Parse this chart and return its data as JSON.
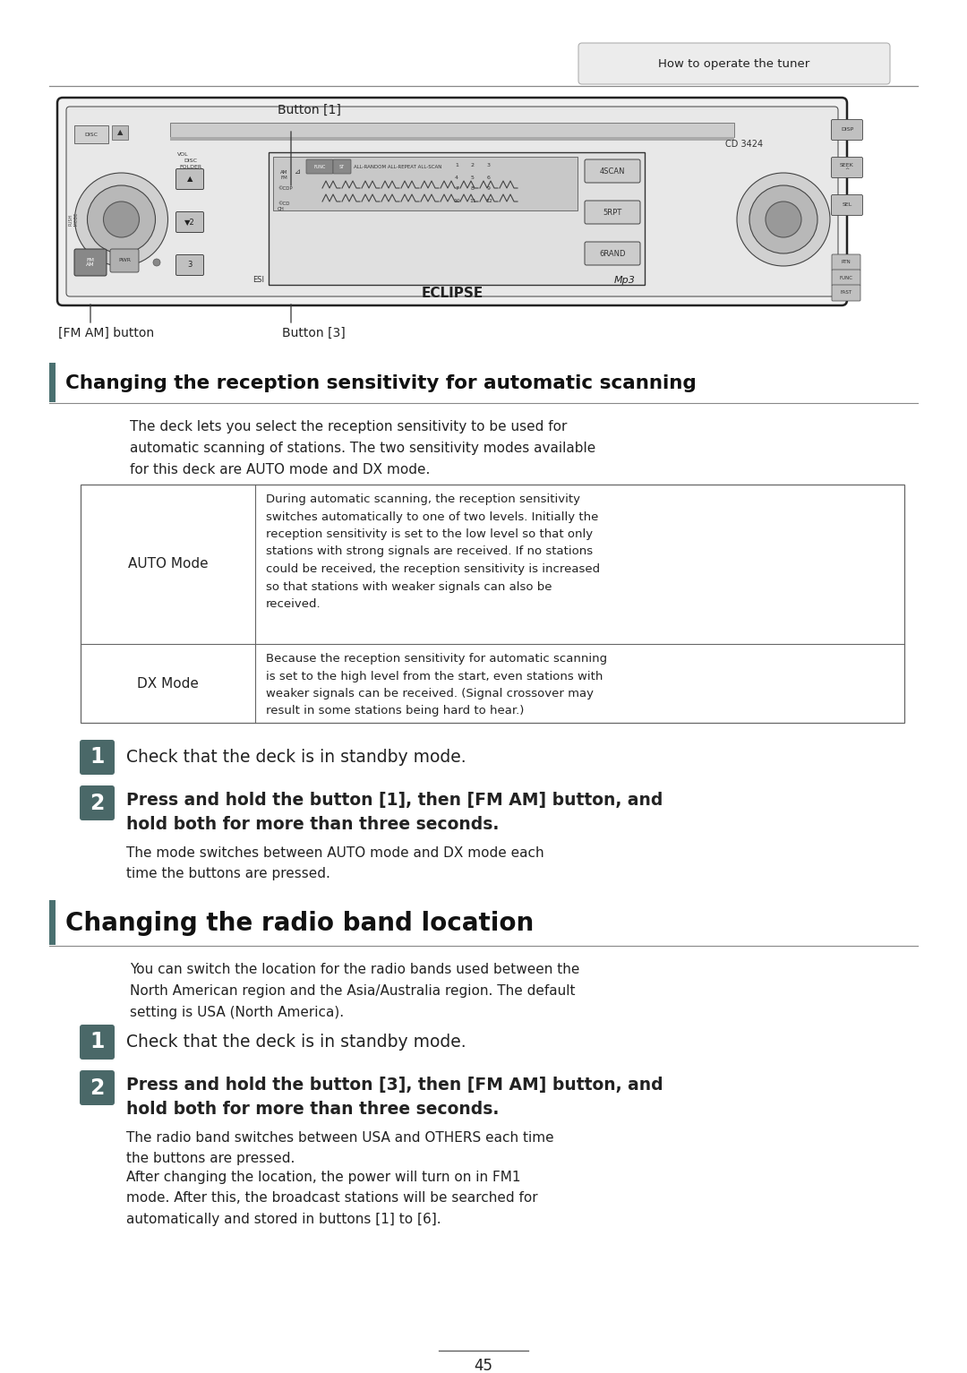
{
  "page_bg": "#ffffff",
  "header_tab_text": "How to operate the tuner",
  "header_tab_bg": "#ececec",
  "header_tab_border": "#aaaaaa",
  "header_line_color": "#888888",
  "button1_label": "Button [1]",
  "fmam_label": "[FM AM] button",
  "button3_label": "Button [3]",
  "section1_title": "Changing the reception sensitivity for automatic scanning",
  "section1_bar_color": "#4a7070",
  "section1_intro": "The deck lets you select the reception sensitivity to be used for\nautomatic scanning of stations. The two sensitivity modes available\nfor this deck are AUTO mode and DX mode.",
  "table_row1_label": "AUTO Mode",
  "table_row1_text": "During automatic scanning, the reception sensitivity\nswitches automatically to one of two levels. Initially the\nreception sensitivity is set to the low level so that only\nstations with strong signals are received. If no stations\ncould be received, the reception sensitivity is increased\nso that stations with weaker signals can also be\nreceived.",
  "table_row2_label": "DX Mode",
  "table_row2_text": "Because the reception sensitivity for automatic scanning\nis set to the high level from the start, even stations with\nweaker signals can be received. (Signal crossover may\nresult in some stations being hard to hear.)",
  "step_bg": "#4a6868",
  "step_text_color": "#ffffff",
  "sec1_step1_text": "Check that the deck is in standby mode.",
  "sec1_step2_bold": "Press and hold the button [1], then [FM AM] button, and\nhold both for more than three seconds.",
  "sec1_step2_note": "The mode switches between AUTO mode and DX mode each\ntime the buttons are pressed.",
  "section2_title": "Changing the radio band location",
  "section2_bar_color": "#4a7070",
  "section2_intro": "You can switch the location for the radio bands used between the\nNorth American region and the Asia/Australia region. The default\nsetting is USA (North America).",
  "sec2_step1_text": "Check that the deck is in standby mode.",
  "sec2_step2_bold": "Press and hold the button [3], then [FM AM] button, and\nhold both for more than three seconds.",
  "sec2_step2_note1": "The radio band switches between USA and OTHERS each time\nthe buttons are pressed.",
  "sec2_step2_note2": "After changing the location, the power will turn on in FM1\nmode. After this, the broadcast stations will be searched for\nautomatically and stored in buttons [1] to [6].",
  "page_number": "45"
}
